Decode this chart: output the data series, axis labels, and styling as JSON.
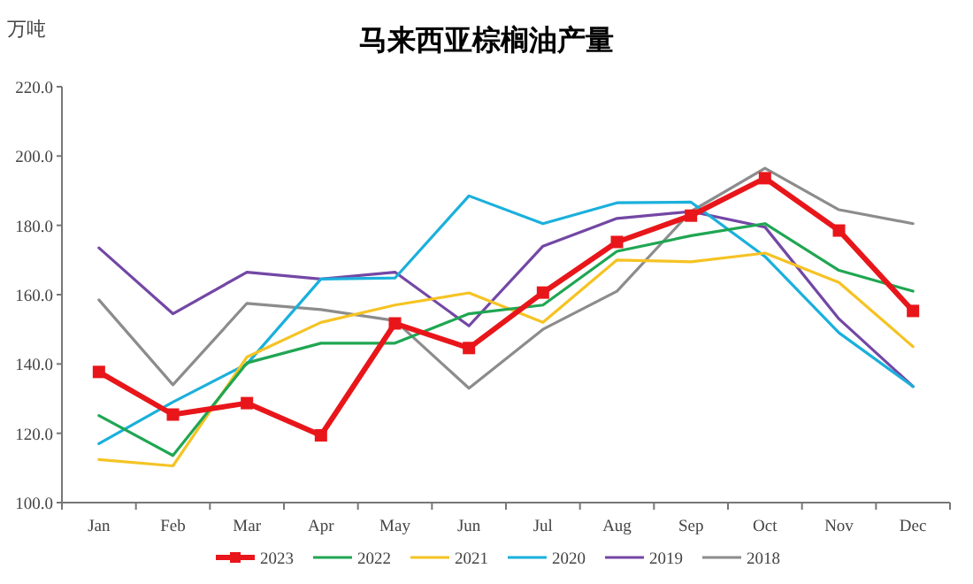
{
  "chart_data": {
    "type": "line",
    "title": "马来西亚棕榈油产量",
    "ylabel": "万吨",
    "categories": [
      "Jan",
      "Feb",
      "Mar",
      "Apr",
      "May",
      "Jun",
      "Jul",
      "Aug",
      "Sep",
      "Oct",
      "Nov",
      "Dec"
    ],
    "ylim": [
      100,
      220
    ],
    "yticks": [
      {
        "value": 100,
        "label": "100.0"
      },
      {
        "value": 120,
        "label": "120.0"
      },
      {
        "value": 140,
        "label": "140.0"
      },
      {
        "value": 160,
        "label": "160.0"
      },
      {
        "value": 180,
        "label": "180.0"
      },
      {
        "value": 200,
        "label": "200.0"
      },
      {
        "value": 220,
        "label": "220.0"
      }
    ],
    "grid": false,
    "legend": "bottom",
    "line_style": "solid",
    "series": [
      {
        "name": "2023",
        "color": "#e8161a",
        "marker": "square",
        "values": [
          137.7,
          125.4,
          128.7,
          119.4,
          151.7,
          144.6,
          160.6,
          175.2,
          182.8,
          193.6,
          178.5,
          155.3
        ]
      },
      {
        "name": "2022",
        "color": "#1fa652",
        "marker": "none",
        "values": [
          125.1,
          113.6,
          140.3,
          146,
          146,
          154.5,
          157,
          172.5,
          177,
          180.5,
          167,
          161
        ]
      },
      {
        "name": "2021",
        "color": "#f5c323",
        "marker": "none",
        "values": [
          112.4,
          110.6,
          142,
          152,
          157,
          160.5,
          152,
          170,
          169.5,
          172,
          163.5,
          145
        ]
      },
      {
        "name": "2020",
        "color": "#1ab0dc",
        "marker": "none",
        "values": [
          117,
          129,
          140,
          164.5,
          164.8,
          188.5,
          180.5,
          186.5,
          186.7,
          171,
          149,
          133.5
        ]
      },
      {
        "name": "2019",
        "color": "#7347a5",
        "marker": "none",
        "values": [
          173.5,
          154.5,
          166.5,
          164.5,
          166.5,
          151,
          174,
          182,
          184,
          179.5,
          153,
          133.5
        ]
      },
      {
        "name": "2018",
        "color": "#8c8c8c",
        "marker": "none",
        "values": [
          158.5,
          134,
          157.5,
          155.7,
          152.5,
          133,
          150,
          161,
          184,
          196.5,
          184.5,
          180.5
        ]
      }
    ]
  }
}
